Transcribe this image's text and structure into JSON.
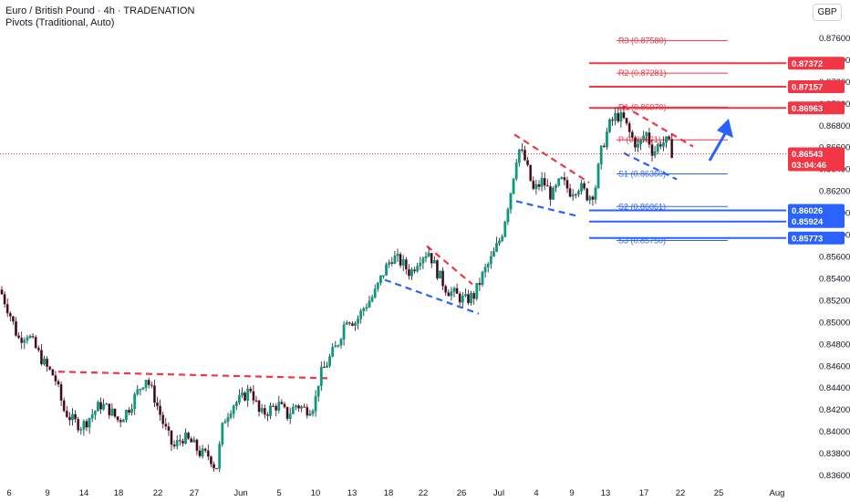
{
  "header": {
    "title": "Euro / British Pound · 4h · TRADENATION",
    "indicator": "Pivots (Traditional, Auto)",
    "currency": "GBP"
  },
  "price": {
    "current": "0.86543",
    "countdown": "03:04:46"
  },
  "colors": {
    "up": "#089981",
    "down": "#f23645",
    "resistance": "#f23645",
    "support": "#2962ff",
    "candle_body_up": "#ffffff",
    "candle_body_down": "#131722"
  },
  "chart_data": {
    "type": "candlestick",
    "y_axis": {
      "range": [
        0.8355,
        0.877
      ],
      "ticks": [
        "0.87600",
        "0.87400",
        "0.87200",
        "0.87000",
        "0.86800",
        "0.86600",
        "0.86400",
        "0.86200",
        "0.86000",
        "0.85800",
        "0.85600",
        "0.85400",
        "0.85200",
        "0.85000",
        "0.84800",
        "0.84600",
        "0.84400",
        "0.84200",
        "0.84000",
        "0.83800",
        "0.83600"
      ],
      "tick_values": [
        0.876,
        0.874,
        0.872,
        0.87,
        0.868,
        0.866,
        0.864,
        0.862,
        0.86,
        0.858,
        0.856,
        0.854,
        0.852,
        0.85,
        0.848,
        0.846,
        0.844,
        0.842,
        0.84,
        0.838,
        0.836
      ]
    },
    "x_axis": {
      "ticks": [
        "6",
        "9",
        "14",
        "18",
        "22",
        "27",
        "Jun",
        "5",
        "10",
        "13",
        "18",
        "22",
        "26",
        "Jul",
        "4",
        "9",
        "13",
        "17",
        "22",
        "25",
        "Aug"
      ]
    },
    "price_path": [
      [
        0,
        0.853
      ],
      [
        10,
        0.851
      ],
      [
        20,
        0.8485
      ],
      [
        30,
        0.849
      ],
      [
        40,
        0.8475
      ],
      [
        50,
        0.846
      ],
      [
        60,
        0.845
      ],
      [
        70,
        0.842
      ],
      [
        80,
        0.841
      ],
      [
        90,
        0.8405
      ],
      [
        100,
        0.8415
      ],
      [
        110,
        0.8425
      ],
      [
        120,
        0.842
      ],
      [
        130,
        0.841
      ],
      [
        140,
        0.842
      ],
      [
        150,
        0.8435
      ],
      [
        160,
        0.845
      ],
      [
        170,
        0.843
      ],
      [
        180,
        0.8405
      ],
      [
        190,
        0.8385
      ],
      [
        200,
        0.8395
      ],
      [
        210,
        0.839
      ],
      [
        220,
        0.838
      ],
      [
        230,
        0.8378
      ],
      [
        237,
        0.8365
      ],
      [
        245,
        0.841
      ],
      [
        255,
        0.8425
      ],
      [
        265,
        0.843
      ],
      [
        275,
        0.844
      ],
      [
        285,
        0.8415
      ],
      [
        295,
        0.842
      ],
      [
        305,
        0.8425
      ],
      [
        315,
        0.8415
      ],
      [
        325,
        0.8425
      ],
      [
        335,
        0.842
      ],
      [
        345,
        0.8425
      ],
      [
        350,
        0.845
      ],
      [
        360,
        0.8465
      ],
      [
        370,
        0.848
      ],
      [
        380,
        0.8505
      ],
      [
        390,
        0.85
      ],
      [
        400,
        0.8515
      ],
      [
        410,
        0.8525
      ],
      [
        420,
        0.8545
      ],
      [
        430,
        0.856
      ],
      [
        440,
        0.8555
      ],
      [
        450,
        0.8545
      ],
      [
        460,
        0.856
      ],
      [
        470,
        0.8565
      ],
      [
        480,
        0.8545
      ],
      [
        490,
        0.853
      ],
      [
        500,
        0.8525
      ],
      [
        510,
        0.852
      ],
      [
        520,
        0.8525
      ],
      [
        530,
        0.8545
      ],
      [
        540,
        0.856
      ],
      [
        550,
        0.858
      ],
      [
        560,
        0.862
      ],
      [
        568,
        0.866
      ],
      [
        575,
        0.865
      ],
      [
        585,
        0.862
      ],
      [
        595,
        0.863
      ],
      [
        605,
        0.8615
      ],
      [
        615,
        0.863
      ],
      [
        625,
        0.862
      ],
      [
        635,
        0.8625
      ],
      [
        645,
        0.8615
      ],
      [
        652,
        0.862
      ],
      [
        660,
        0.866
      ],
      [
        668,
        0.868
      ],
      [
        676,
        0.869
      ],
      [
        684,
        0.8685
      ],
      [
        692,
        0.867
      ],
      [
        700,
        0.866
      ],
      [
        708,
        0.8675
      ],
      [
        716,
        0.8655
      ],
      [
        724,
        0.8665
      ],
      [
        732,
        0.8665
      ],
      [
        738,
        0.8654
      ]
    ],
    "pivots": [
      {
        "label": "R3 (0.87580)",
        "value": 0.8758,
        "kind": "resistance"
      },
      {
        "label": "R2 (0.87281)",
        "value": 0.87281,
        "kind": "resistance"
      },
      {
        "label": "R1 (0.86970)",
        "value": 0.8697,
        "kind": "resistance"
      },
      {
        "label": "P (0.86671)",
        "value": 0.86671,
        "kind": "resistance"
      },
      {
        "label": "S1 (0.86360)",
        "value": 0.8636,
        "kind": "support"
      },
      {
        "label": "S2 (0.86061)",
        "value": 0.86061,
        "kind": "support"
      },
      {
        "label": "S3 (0.85750)",
        "value": 0.8575,
        "kind": "support"
      }
    ],
    "levels": [
      {
        "value": 0.87372,
        "text": "0.87372",
        "kind": "resistance"
      },
      {
        "value": 0.87157,
        "text": "0.87157",
        "kind": "resistance"
      },
      {
        "value": 0.86963,
        "text": "0.86963",
        "kind": "resistance"
      },
      {
        "value": 0.86026,
        "text": "0.86026",
        "kind": "support"
      },
      {
        "value": 0.85924,
        "text": "0.85924",
        "kind": "support"
      },
      {
        "value": 0.85773,
        "text": "0.85773",
        "kind": "support"
      }
    ]
  }
}
